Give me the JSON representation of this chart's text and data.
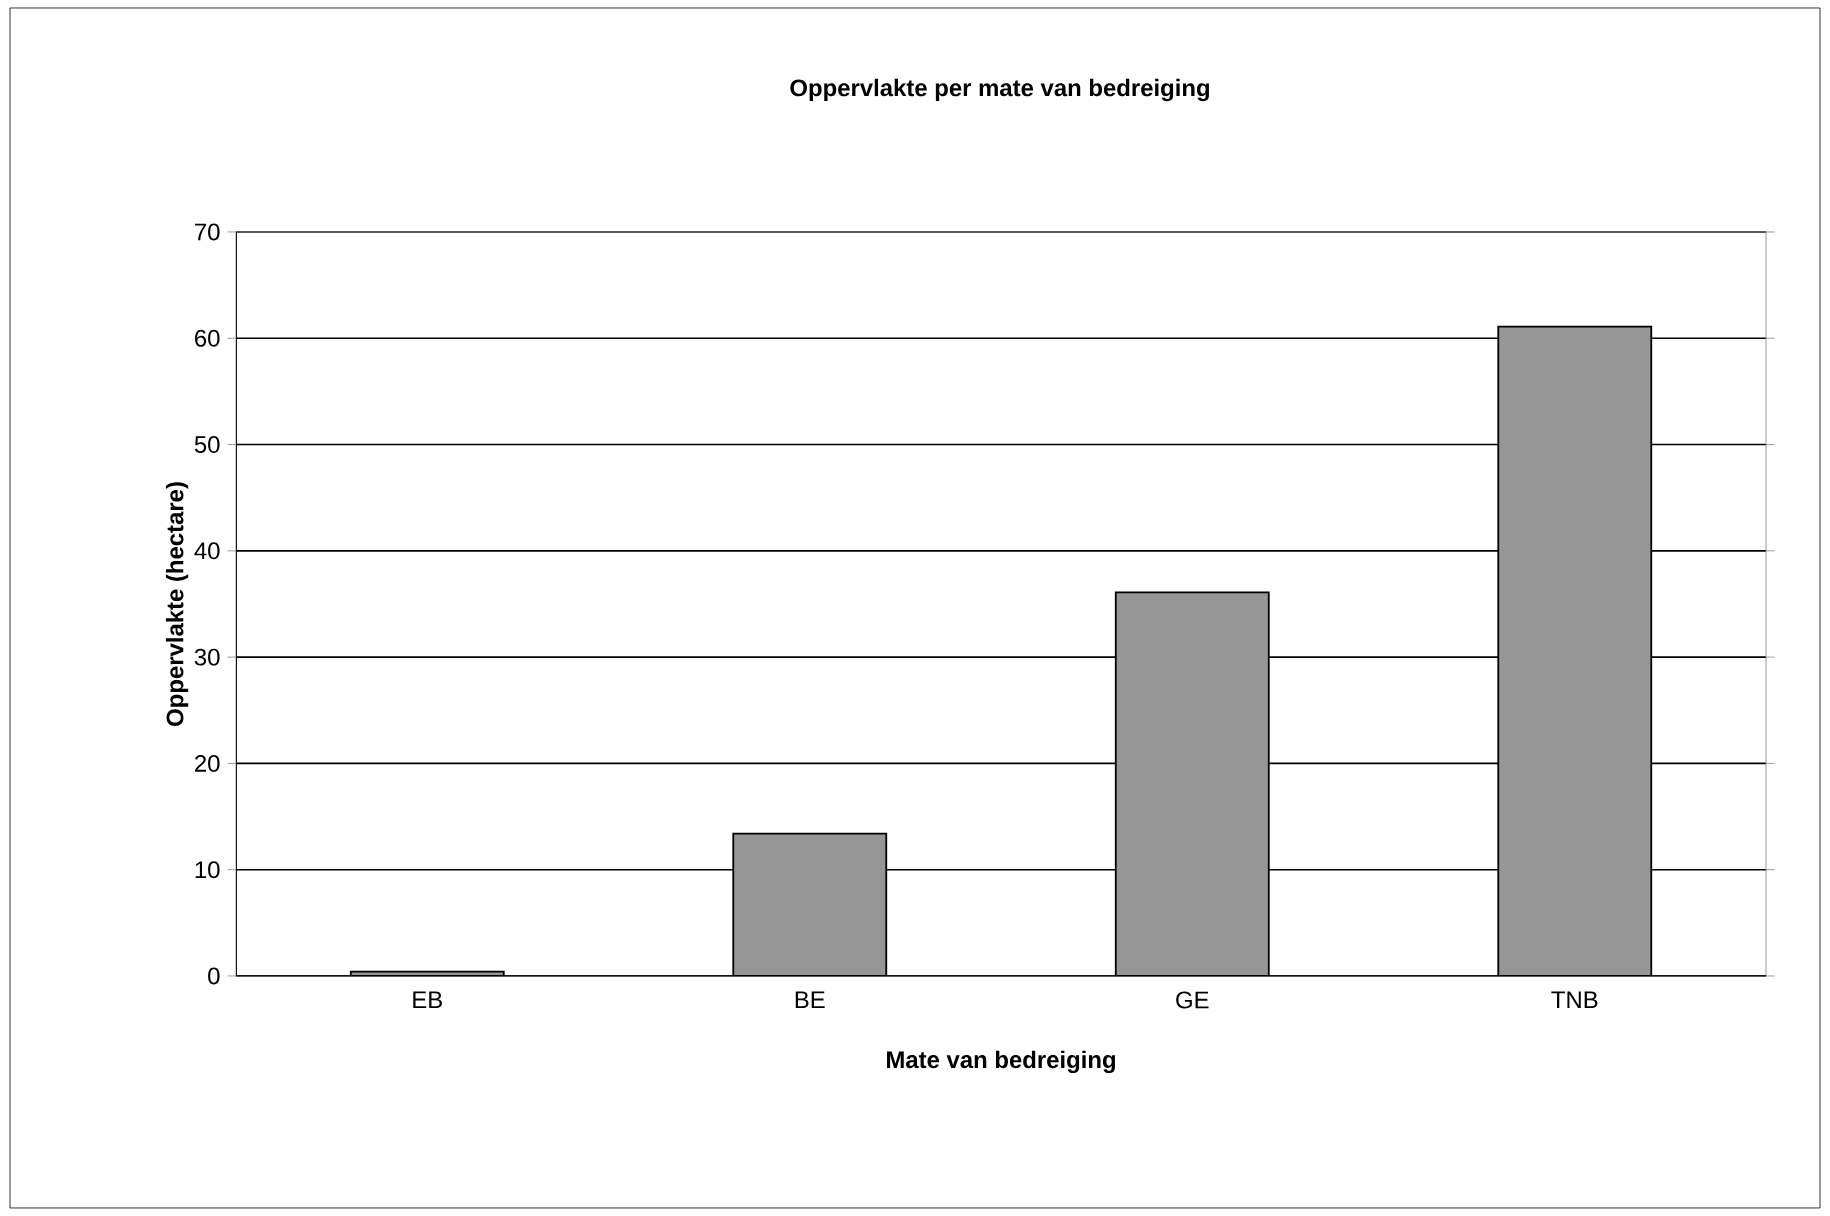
{
  "chart_data": {
    "type": "bar",
    "title": "Oppervlakte per mate van bedreiging",
    "xlabel": "Mate van bedreiging",
    "ylabel": "Oppervlakte (hectare)",
    "categories": [
      "EB",
      "BE",
      "GE",
      "TNB"
    ],
    "values": [
      0.4,
      13.4,
      36.1,
      61.1
    ],
    "color": "#969696",
    "ylim": [
      0,
      70
    ],
    "yticks": [
      0,
      10,
      20,
      30,
      40,
      50,
      60,
      70
    ],
    "grid": "y"
  }
}
